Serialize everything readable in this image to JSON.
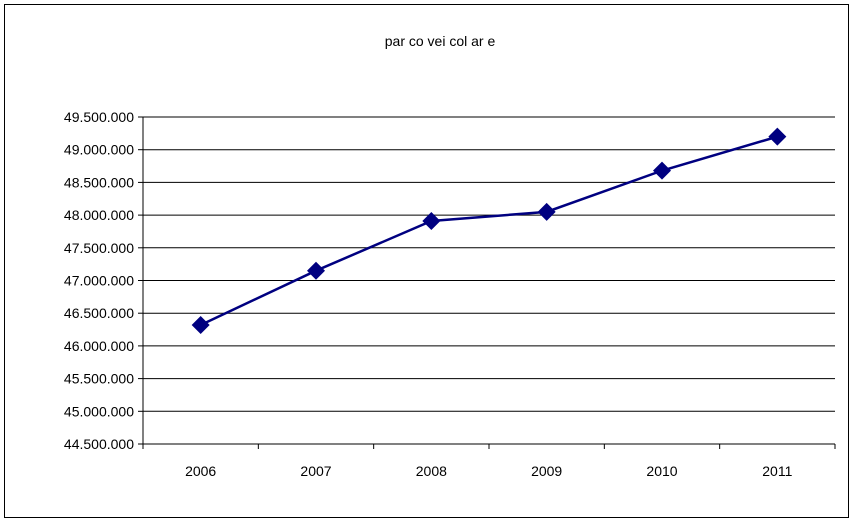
{
  "chart_data": {
    "type": "line",
    "title": "par co vei col ar e",
    "xlabel": "",
    "ylabel": "",
    "categories": [
      "2006",
      "2007",
      "2008",
      "2009",
      "2010",
      "2011"
    ],
    "series": [
      {
        "values": [
          46320000,
          47150000,
          47910000,
          48050000,
          48680000,
          49200000
        ],
        "color": "#000080"
      }
    ],
    "ylim": [
      44500000,
      49500000
    ],
    "yticks": [
      44500000,
      45000000,
      45500000,
      46000000,
      46500000,
      47000000,
      47500000,
      48000000,
      48500000,
      49000000,
      49500000
    ],
    "ytick_labels": [
      "44.500.000",
      "45.000.000",
      "45.500.000",
      "46.000.000",
      "46.500.000",
      "47.000.000",
      "47.500.000",
      "48.000.000",
      "48.500.000",
      "49.000.000",
      "49.500.000"
    ],
    "grid": true,
    "marker": "diamond",
    "legend": "none"
  }
}
